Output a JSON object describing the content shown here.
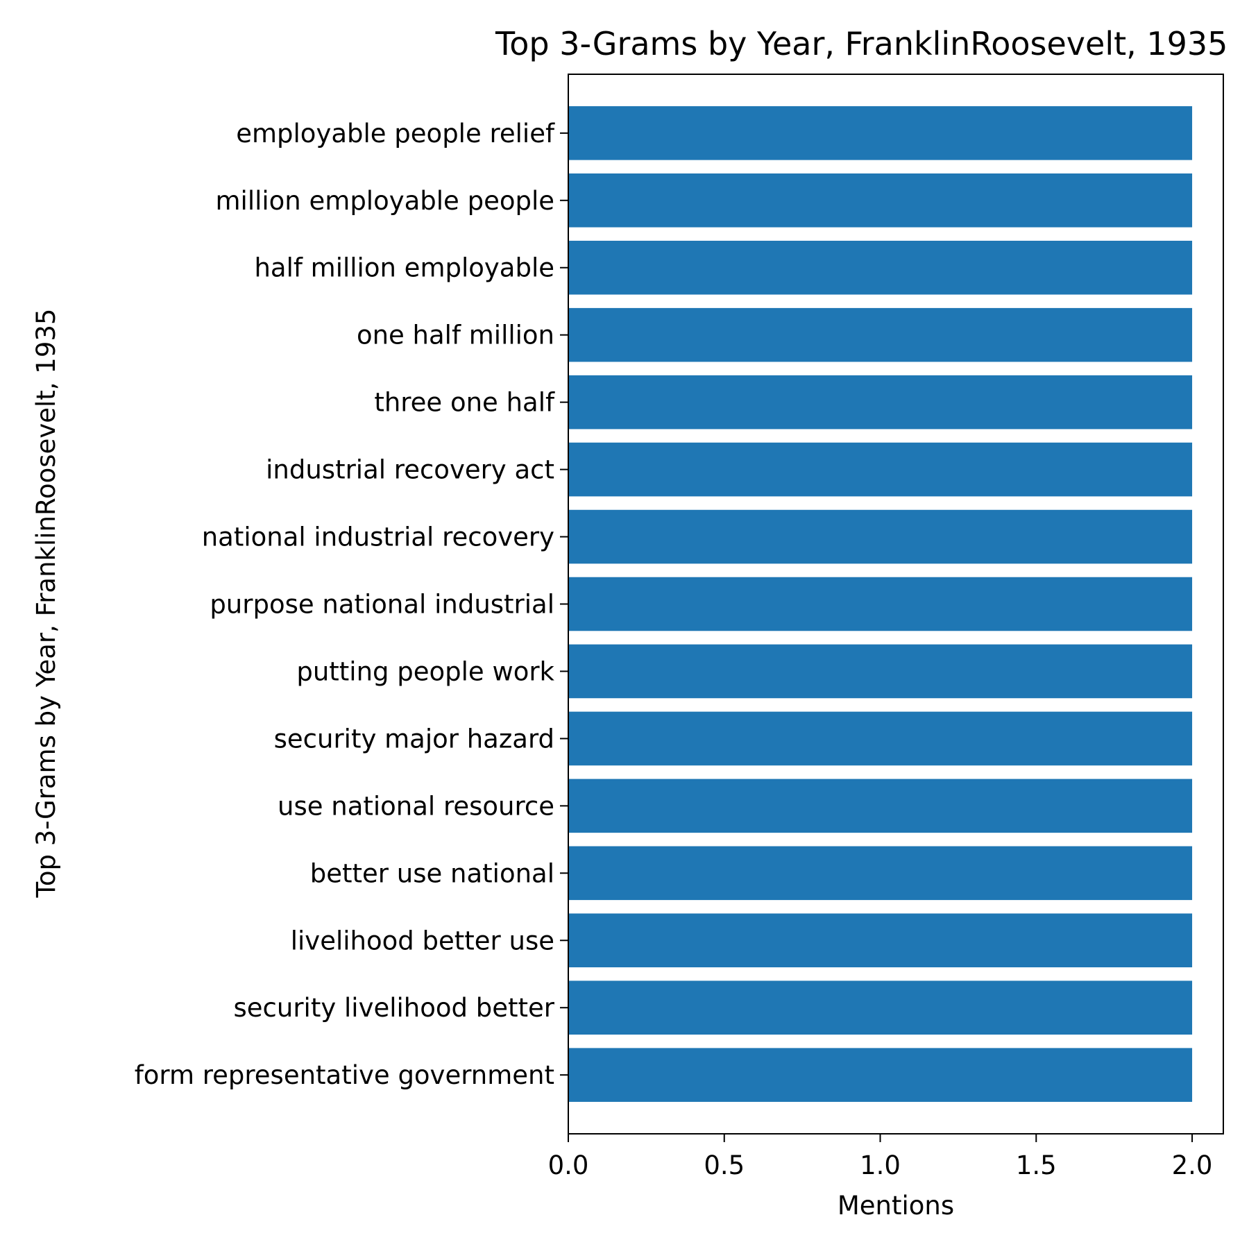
{
  "chart_data": {
    "type": "bar",
    "orientation": "horizontal",
    "title": "Top 3-Grams by Year, FranklinRoosevelt, 1935",
    "xlabel": "Mentions",
    "ylabel": "Top 3-Grams by Year, FranklinRoosevelt, 1935",
    "xlim": [
      0,
      2.1
    ],
    "xticks": [
      0.0,
      0.5,
      1.0,
      1.5,
      2.0
    ],
    "xtick_labels": [
      "0.0",
      "0.5",
      "1.0",
      "1.5",
      "2.0"
    ],
    "grid": false,
    "bar_color": "#1f77b4",
    "categories": [
      "employable people relief",
      "million employable people",
      "half million employable",
      "one half million",
      "three one half",
      "industrial recovery act",
      "national industrial recovery",
      "purpose national industrial",
      "putting people work",
      "security major hazard",
      "use national resource",
      "better use national",
      "livelihood better use",
      "security livelihood better",
      "form representative government"
    ],
    "values": [
      2,
      2,
      2,
      2,
      2,
      2,
      2,
      2,
      2,
      2,
      2,
      2,
      2,
      2,
      2
    ]
  }
}
